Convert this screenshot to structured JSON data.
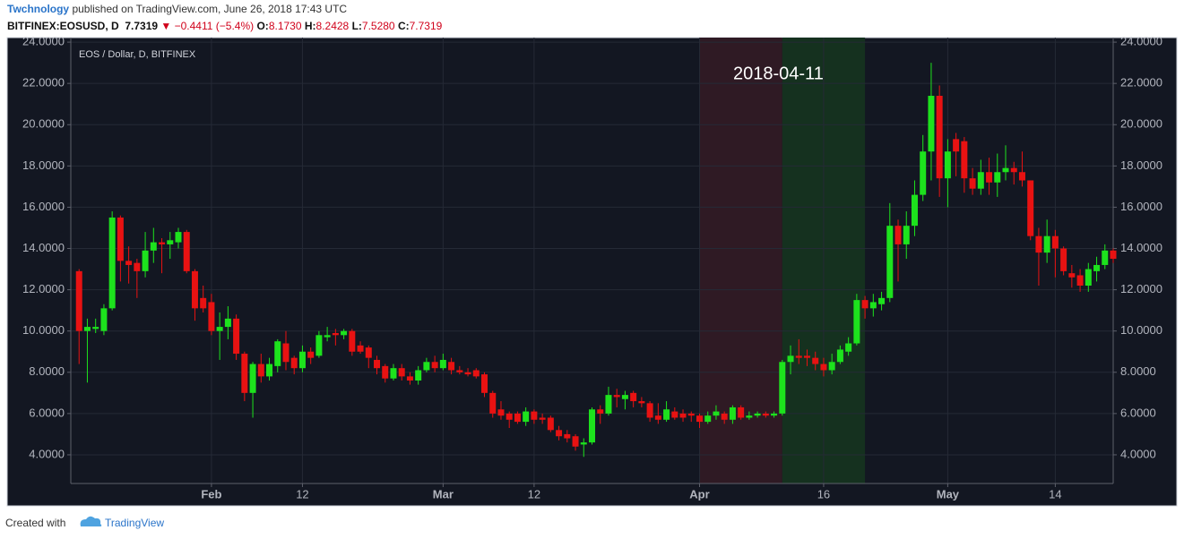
{
  "header": {
    "author": "Twchnology",
    "published": "published on TradingView.com, June 26, 2018 17:43 UTC",
    "symbol": "BITFINEX:EOSUSD, D",
    "last": "7.7319",
    "change": "▼ −0.4411 (−5.4%)",
    "ohlc": [
      {
        "label": "O:",
        "value": "8.1730"
      },
      {
        "label": "H:",
        "value": "8.2428"
      },
      {
        "label": "L:",
        "value": "7.5280"
      },
      {
        "label": "C:",
        "value": "7.7319"
      }
    ]
  },
  "footer": {
    "created": "Created with",
    "brand": "TradingView"
  },
  "chart_data": {
    "type": "candlestick",
    "legend": "EOS / Dollar, D, BITFINEX",
    "annotation": "2018-04-11",
    "up_color": "#1de21d",
    "down_color": "#e81212",
    "grid": true,
    "highlights": [
      {
        "from": "2018-04-01",
        "to": "2018-04-11",
        "color": "#2f1a24"
      },
      {
        "from": "2018-04-11",
        "to": "2018-04-21",
        "color": "#15311f"
      }
    ],
    "x": [
      "2018-01-16",
      "2018-01-17",
      "2018-01-18",
      "2018-01-19",
      "2018-01-20",
      "2018-01-21",
      "2018-01-22",
      "2018-01-23",
      "2018-01-24",
      "2018-01-25",
      "2018-01-26",
      "2018-01-27",
      "2018-01-28",
      "2018-01-29",
      "2018-01-30",
      "2018-01-31",
      "2018-02-01",
      "2018-02-02",
      "2018-02-03",
      "2018-02-04",
      "2018-02-05",
      "2018-02-06",
      "2018-02-07",
      "2018-02-08",
      "2018-02-09",
      "2018-02-10",
      "2018-02-11",
      "2018-02-12",
      "2018-02-13",
      "2018-02-14",
      "2018-02-15",
      "2018-02-16",
      "2018-02-17",
      "2018-02-18",
      "2018-02-19",
      "2018-02-20",
      "2018-02-21",
      "2018-02-22",
      "2018-02-23",
      "2018-02-24",
      "2018-02-25",
      "2018-02-26",
      "2018-02-27",
      "2018-02-28",
      "2018-03-01",
      "2018-03-02",
      "2018-03-03",
      "2018-03-04",
      "2018-03-05",
      "2018-03-06",
      "2018-03-07",
      "2018-03-08",
      "2018-03-09",
      "2018-03-10",
      "2018-03-11",
      "2018-03-12",
      "2018-03-13",
      "2018-03-14",
      "2018-03-15",
      "2018-03-16",
      "2018-03-17",
      "2018-03-18",
      "2018-03-19",
      "2018-03-20",
      "2018-03-21",
      "2018-03-22",
      "2018-03-23",
      "2018-03-24",
      "2018-03-25",
      "2018-03-26",
      "2018-03-27",
      "2018-03-28",
      "2018-03-29",
      "2018-03-30",
      "2018-03-31",
      "2018-04-01",
      "2018-04-02",
      "2018-04-03",
      "2018-04-04",
      "2018-04-05",
      "2018-04-06",
      "2018-04-07",
      "2018-04-08",
      "2018-04-09",
      "2018-04-10",
      "2018-04-11",
      "2018-04-12",
      "2018-04-13",
      "2018-04-14",
      "2018-04-15",
      "2018-04-16",
      "2018-04-17",
      "2018-04-18",
      "2018-04-19",
      "2018-04-20",
      "2018-04-21",
      "2018-04-22",
      "2018-04-23",
      "2018-04-24",
      "2018-04-25",
      "2018-04-26",
      "2018-04-27",
      "2018-04-28",
      "2018-04-29",
      "2018-04-30",
      "2018-05-01",
      "2018-05-02",
      "2018-05-03",
      "2018-05-04",
      "2018-05-05",
      "2018-05-06",
      "2018-05-07",
      "2018-05-08",
      "2018-05-09",
      "2018-05-10",
      "2018-05-11",
      "2018-05-12",
      "2018-05-13",
      "2018-05-14",
      "2018-05-15",
      "2018-05-16",
      "2018-05-17",
      "2018-05-18",
      "2018-05-19",
      "2018-05-20",
      "2018-05-21"
    ],
    "open": [
      12.9,
      10.0,
      10.1,
      10.0,
      11.1,
      15.5,
      13.4,
      13.3,
      12.9,
      13.9,
      14.3,
      14.2,
      14.3,
      14.8,
      12.9,
      11.6,
      11.4,
      10.0,
      10.2,
      10.6,
      8.9,
      7.0,
      8.4,
      7.8,
      8.3,
      9.4,
      8.7,
      8.2,
      9.0,
      8.8,
      9.7,
      9.9,
      9.8,
      10.0,
      9.3,
      9.2,
      8.6,
      8.3,
      7.7,
      8.2,
      7.8,
      7.6,
      8.1,
      8.5,
      8.2,
      8.5,
      8.1,
      8.0,
      8.1,
      7.9,
      7.0,
      6.2,
      6.0,
      6.0,
      5.6,
      6.1,
      5.8,
      5.8,
      5.2,
      5.0,
      4.9,
      4.5,
      4.6,
      6.2,
      6.0,
      6.9,
      6.7,
      7.0,
      6.6,
      6.5,
      5.9,
      5.7,
      6.1,
      6.0,
      6.0,
      5.9,
      5.6,
      5.9,
      6.0,
      5.7,
      6.3,
      5.8,
      5.9,
      6.0,
      5.9,
      6.0,
      8.5,
      8.8,
      8.8,
      8.7,
      8.4,
      8.1,
      8.5,
      9.0,
      9.4,
      11.5,
      11.1,
      11.3,
      11.6,
      15.1,
      14.2,
      15.1,
      16.6,
      18.7,
      21.4,
      17.4,
      19.3,
      19.2,
      17.4,
      16.9,
      17.7,
      17.2,
      17.7,
      17.9,
      17.7,
      17.3,
      14.6,
      13.8,
      14.6,
      14.0,
      12.8,
      12.7,
      12.2,
      12.9,
      13.2,
      13.9
    ],
    "high": [
      13.0,
      10.6,
      10.6,
      11.3,
      15.8,
      15.6,
      14.1,
      13.5,
      14.8,
      15.0,
      14.5,
      14.8,
      15.0,
      14.9,
      13.0,
      12.2,
      11.8,
      10.9,
      11.2,
      10.8,
      9.0,
      8.5,
      8.9,
      8.7,
      9.6,
      10.0,
      8.8,
      9.3,
      9.2,
      10.0,
      10.2,
      10.1,
      10.1,
      10.1,
      9.5,
      9.3,
      8.8,
      8.4,
      8.4,
      8.4,
      8.0,
      8.3,
      8.7,
      8.8,
      8.9,
      8.7,
      8.3,
      8.2,
      8.2,
      8.0,
      7.1,
      6.6,
      6.1,
      6.1,
      6.3,
      6.2,
      6.0,
      5.9,
      5.4,
      5.2,
      5.0,
      4.8,
      6.3,
      6.4,
      7.3,
      7.2,
      7.1,
      7.1,
      6.8,
      6.6,
      6.5,
      6.6,
      6.3,
      6.2,
      6.1,
      6.0,
      6.1,
      6.4,
      6.1,
      6.4,
      6.4,
      6.1,
      6.1,
      6.1,
      6.1,
      8.6,
      9.3,
      9.6,
      9.1,
      9.0,
      8.7,
      8.9,
      9.3,
      9.7,
      11.8,
      11.7,
      11.8,
      11.9,
      16.2,
      15.4,
      15.8,
      17.3,
      19.5,
      23.0,
      21.9,
      19.3,
      19.6,
      19.4,
      17.9,
      18.3,
      18.4,
      18.6,
      19.0,
      18.2,
      18.7,
      17.3,
      15.0,
      15.4,
      14.9,
      14.1,
      13.2,
      13.0,
      13.3,
      13.6,
      14.2,
      14.0
    ],
    "low": [
      8.4,
      7.5,
      9.9,
      9.8,
      11.0,
      12.4,
      12.3,
      11.6,
      12.6,
      13.3,
      12.8,
      13.5,
      14.0,
      12.8,
      10.5,
      10.9,
      9.8,
      8.6,
      9.6,
      8.6,
      6.6,
      5.8,
      7.5,
      7.6,
      8.0,
      8.1,
      7.9,
      8.0,
      8.4,
      8.7,
      9.5,
      9.3,
      9.6,
      8.8,
      8.9,
      8.2,
      7.9,
      7.5,
      7.6,
      7.6,
      7.4,
      7.4,
      8.0,
      8.0,
      8.1,
      7.9,
      7.9,
      7.8,
      7.7,
      6.8,
      5.8,
      5.7,
      5.3,
      5.5,
      5.4,
      5.5,
      5.5,
      5.1,
      4.7,
      4.6,
      4.2,
      3.9,
      4.5,
      5.5,
      5.9,
      6.3,
      6.2,
      6.3,
      6.3,
      5.6,
      5.5,
      5.6,
      5.7,
      5.6,
      5.6,
      5.3,
      5.5,
      5.7,
      5.5,
      5.5,
      5.7,
      5.7,
      5.8,
      5.8,
      5.8,
      5.9,
      7.9,
      8.4,
      8.3,
      8.1,
      7.8,
      7.9,
      8.4,
      8.8,
      9.3,
      10.6,
      10.7,
      11.0,
      11.4,
      12.4,
      13.5,
      14.6,
      16.3,
      17.3,
      16.5,
      16.0,
      17.5,
      16.7,
      16.6,
      16.6,
      16.6,
      16.5,
      17.3,
      17.1,
      17.0,
      14.4,
      12.2,
      13.3,
      12.6,
      12.7,
      12.1,
      11.9,
      11.9,
      12.4,
      13.0,
      13.3
    ],
    "close": [
      10.0,
      10.2,
      10.2,
      11.1,
      15.5,
      13.4,
      13.2,
      12.9,
      13.9,
      14.3,
      14.2,
      14.4,
      14.8,
      12.9,
      11.1,
      11.1,
      10.0,
      10.2,
      10.6,
      8.9,
      7.0,
      8.4,
      7.8,
      8.4,
      9.5,
      8.5,
      8.2,
      9.0,
      8.7,
      9.8,
      9.8,
      9.8,
      10.0,
      9.0,
      9.0,
      8.7,
      8.2,
      7.7,
      8.2,
      7.8,
      7.6,
      8.1,
      8.5,
      8.2,
      8.6,
      8.1,
      8.0,
      7.9,
      7.8,
      7.0,
      6.0,
      5.9,
      5.7,
      5.6,
      6.1,
      5.7,
      5.7,
      5.2,
      4.9,
      4.8,
      4.4,
      4.6,
      6.2,
      6.0,
      6.9,
      6.8,
      6.9,
      6.6,
      6.5,
      5.8,
      5.7,
      6.2,
      5.8,
      5.8,
      5.9,
      5.6,
      5.9,
      6.1,
      5.7,
      6.3,
      5.8,
      5.9,
      6.0,
      5.9,
      6.0,
      8.5,
      8.8,
      8.7,
      8.7,
      8.4,
      8.1,
      8.5,
      9.1,
      9.4,
      11.5,
      11.1,
      11.4,
      11.6,
      15.1,
      14.2,
      15.1,
      16.6,
      18.7,
      21.4,
      17.4,
      18.7,
      18.7,
      17.4,
      16.9,
      17.7,
      17.2,
      17.7,
      17.9,
      17.7,
      17.3,
      14.6,
      13.8,
      14.6,
      14.0,
      12.9,
      12.6,
      12.2,
      13.0,
      13.2,
      13.9,
      13.5
    ],
    "xlim": [
      "2018-01-15",
      "2018-05-21"
    ],
    "xticks": [
      {
        "value": "2018-02-01",
        "label": "Feb"
      },
      {
        "value": "2018-02-12",
        "label": "12"
      },
      {
        "value": "2018-03-01",
        "label": "Mar"
      },
      {
        "value": "2018-03-12",
        "label": "12"
      },
      {
        "value": "2018-04-01",
        "label": "Apr"
      },
      {
        "value": "2018-04-16",
        "label": "16"
      },
      {
        "value": "2018-05-01",
        "label": "May"
      },
      {
        "value": "2018-05-14",
        "label": "14"
      }
    ],
    "ylim": [
      2.61,
      24.22
    ],
    "yticks": [
      {
        "value": 4,
        "label": "4.0000"
      },
      {
        "value": 6,
        "label": "6.0000"
      },
      {
        "value": 8,
        "label": "8.0000"
      },
      {
        "value": 10,
        "label": "10.0000"
      },
      {
        "value": 12,
        "label": "12.0000"
      },
      {
        "value": 14,
        "label": "14.0000"
      },
      {
        "value": 16,
        "label": "16.0000"
      },
      {
        "value": 18,
        "label": "18.0000"
      },
      {
        "value": 20,
        "label": "20.0000"
      },
      {
        "value": 22,
        "label": "22.0000"
      },
      {
        "value": 24,
        "label": "24.0000"
      }
    ]
  }
}
